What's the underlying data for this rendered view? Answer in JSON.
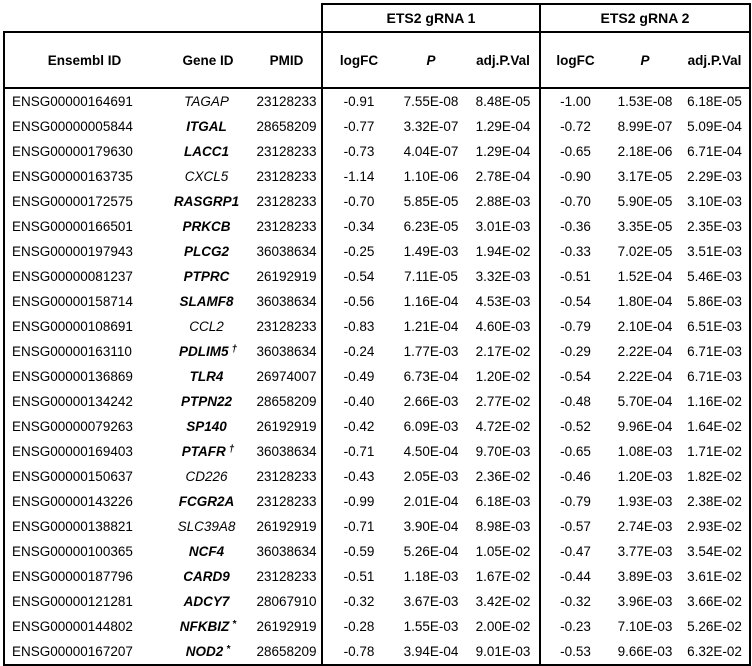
{
  "table": {
    "groups": [
      {
        "label": "ETS2 gRNA 1"
      },
      {
        "label": "ETS2 gRNA 2"
      }
    ],
    "columns": {
      "ensembl": "Ensembl ID",
      "gene": "Gene ID",
      "pmid": "PMID",
      "logfc": "logFC",
      "p": "P",
      "adj": "adj.P.Val"
    },
    "rows": [
      {
        "ensembl": "ENSG00000164691",
        "gene": "TAGAP",
        "bold": false,
        "pmid": "23128233",
        "g1": [
          "-0.91",
          "7.55E-08",
          "8.48E-05"
        ],
        "g2": [
          "-1.00",
          "1.53E-08",
          "6.18E-05"
        ]
      },
      {
        "ensembl": "ENSG00000005844",
        "gene": "ITGAL",
        "bold": true,
        "pmid": "28658209",
        "g1": [
          "-0.77",
          "3.32E-07",
          "1.29E-04"
        ],
        "g2": [
          "-0.72",
          "8.99E-07",
          "5.09E-04"
        ]
      },
      {
        "ensembl": "ENSG00000179630",
        "gene": "LACC1",
        "bold": true,
        "pmid": "23128233",
        "g1": [
          "-0.73",
          "4.04E-07",
          "1.29E-04"
        ],
        "g2": [
          "-0.65",
          "2.18E-06",
          "6.71E-04"
        ]
      },
      {
        "ensembl": "ENSG00000163735",
        "gene": "CXCL5",
        "bold": false,
        "pmid": "23128233",
        "g1": [
          "-1.14",
          "1.10E-06",
          "2.78E-04"
        ],
        "g2": [
          "-0.90",
          "3.17E-05",
          "2.29E-03"
        ]
      },
      {
        "ensembl": "ENSG00000172575",
        "gene": "RASGRP1",
        "bold": true,
        "pmid": "23128233",
        "g1": [
          "-0.70",
          "5.85E-05",
          "2.88E-03"
        ],
        "g2": [
          "-0.70",
          "5.90E-05",
          "3.10E-03"
        ]
      },
      {
        "ensembl": "ENSG00000166501",
        "gene": "PRKCB",
        "bold": true,
        "pmid": "23128233",
        "g1": [
          "-0.34",
          "6.23E-05",
          "3.01E-03"
        ],
        "g2": [
          "-0.36",
          "3.35E-05",
          "2.35E-03"
        ]
      },
      {
        "ensembl": "ENSG00000197943",
        "gene": "PLCG2",
        "bold": true,
        "pmid": "36038634",
        "g1": [
          "-0.25",
          "1.49E-03",
          "1.94E-02"
        ],
        "g2": [
          "-0.33",
          "7.02E-05",
          "3.51E-03"
        ]
      },
      {
        "ensembl": "ENSG00000081237",
        "gene": "PTPRC",
        "bold": true,
        "pmid": "26192919",
        "g1": [
          "-0.54",
          "7.11E-05",
          "3.32E-03"
        ],
        "g2": [
          "-0.51",
          "1.52E-04",
          "5.46E-03"
        ]
      },
      {
        "ensembl": "ENSG00000158714",
        "gene": "SLAMF8",
        "bold": true,
        "pmid": "36038634",
        "g1": [
          "-0.56",
          "1.16E-04",
          "4.53E-03"
        ],
        "g2": [
          "-0.54",
          "1.80E-04",
          "5.86E-03"
        ]
      },
      {
        "ensembl": "ENSG00000108691",
        "gene": "CCL2",
        "bold": false,
        "pmid": "23128233",
        "g1": [
          "-0.83",
          "1.21E-04",
          "4.60E-03"
        ],
        "g2": [
          "-0.79",
          "2.10E-04",
          "6.51E-03"
        ]
      },
      {
        "ensembl": "ENSG00000163110",
        "gene": "PDLIM5",
        "bold": true,
        "marker": "†",
        "pmid": "36038634",
        "g1": [
          "-0.24",
          "1.77E-03",
          "2.17E-02"
        ],
        "g2": [
          "-0.29",
          "2.22E-04",
          "6.71E-03"
        ]
      },
      {
        "ensembl": "ENSG00000136869",
        "gene": "TLR4",
        "bold": true,
        "pmid": "26974007",
        "g1": [
          "-0.49",
          "6.73E-04",
          "1.20E-02"
        ],
        "g2": [
          "-0.54",
          "2.22E-04",
          "6.71E-03"
        ]
      },
      {
        "ensembl": "ENSG00000134242",
        "gene": "PTPN22",
        "bold": true,
        "pmid": "28658209",
        "g1": [
          "-0.40",
          "2.66E-03",
          "2.77E-02"
        ],
        "g2": [
          "-0.48",
          "5.70E-04",
          "1.16E-02"
        ]
      },
      {
        "ensembl": "ENSG00000079263",
        "gene": "SP140",
        "bold": true,
        "pmid": "26192919",
        "g1": [
          "-0.42",
          "6.09E-03",
          "4.72E-02"
        ],
        "g2": [
          "-0.52",
          "9.96E-04",
          "1.64E-02"
        ]
      },
      {
        "ensembl": "ENSG00000169403",
        "gene": "PTAFR",
        "bold": true,
        "marker": "†",
        "pmid": "36038634",
        "g1": [
          "-0.71",
          "4.50E-04",
          "9.70E-03"
        ],
        "g2": [
          "-0.65",
          "1.08E-03",
          "1.71E-02"
        ]
      },
      {
        "ensembl": "ENSG00000150637",
        "gene": "CD226",
        "bold": false,
        "pmid": "23128233",
        "g1": [
          "-0.43",
          "2.05E-03",
          "2.36E-02"
        ],
        "g2": [
          "-0.46",
          "1.20E-03",
          "1.82E-02"
        ]
      },
      {
        "ensembl": "ENSG00000143226",
        "gene": "FCGR2A",
        "bold": true,
        "pmid": "23128233",
        "g1": [
          "-0.99",
          "2.01E-04",
          "6.18E-03"
        ],
        "g2": [
          "-0.79",
          "1.93E-03",
          "2.38E-02"
        ]
      },
      {
        "ensembl": "ENSG00000138821",
        "gene": "SLC39A8",
        "bold": false,
        "pmid": "26192919",
        "g1": [
          "-0.71",
          "3.90E-04",
          "8.98E-03"
        ],
        "g2": [
          "-0.57",
          "2.74E-03",
          "2.93E-02"
        ]
      },
      {
        "ensembl": "ENSG00000100365",
        "gene": "NCF4",
        "bold": true,
        "pmid": "36038634",
        "g1": [
          "-0.59",
          "5.26E-04",
          "1.05E-02"
        ],
        "g2": [
          "-0.47",
          "3.77E-03",
          "3.54E-02"
        ]
      },
      {
        "ensembl": "ENSG00000187796",
        "gene": "CARD9",
        "bold": true,
        "pmid": "23128233",
        "g1": [
          "-0.51",
          "1.18E-03",
          "1.67E-02"
        ],
        "g2": [
          "-0.44",
          "3.89E-03",
          "3.61E-02"
        ]
      },
      {
        "ensembl": "ENSG00000121281",
        "gene": "ADCY7",
        "bold": true,
        "pmid": "28067910",
        "g1": [
          "-0.32",
          "3.67E-03",
          "3.42E-02"
        ],
        "g2": [
          "-0.32",
          "3.96E-03",
          "3.66E-02"
        ]
      },
      {
        "ensembl": "ENSG00000144802",
        "gene": "NFKBIZ",
        "bold": true,
        "marker": "*",
        "pmid": "26192919",
        "g1": [
          "-0.28",
          "1.55E-03",
          "2.00E-02"
        ],
        "g2": [
          "-0.23",
          "7.10E-03",
          "5.26E-02"
        ]
      },
      {
        "ensembl": "ENSG00000167207",
        "gene": "NOD2",
        "bold": true,
        "marker": "*",
        "pmid": "28658209",
        "g1": [
          "-0.78",
          "3.94E-04",
          "9.01E-03"
        ],
        "g2": [
          "-0.53",
          "9.66E-03",
          "6.32E-02"
        ]
      }
    ]
  }
}
